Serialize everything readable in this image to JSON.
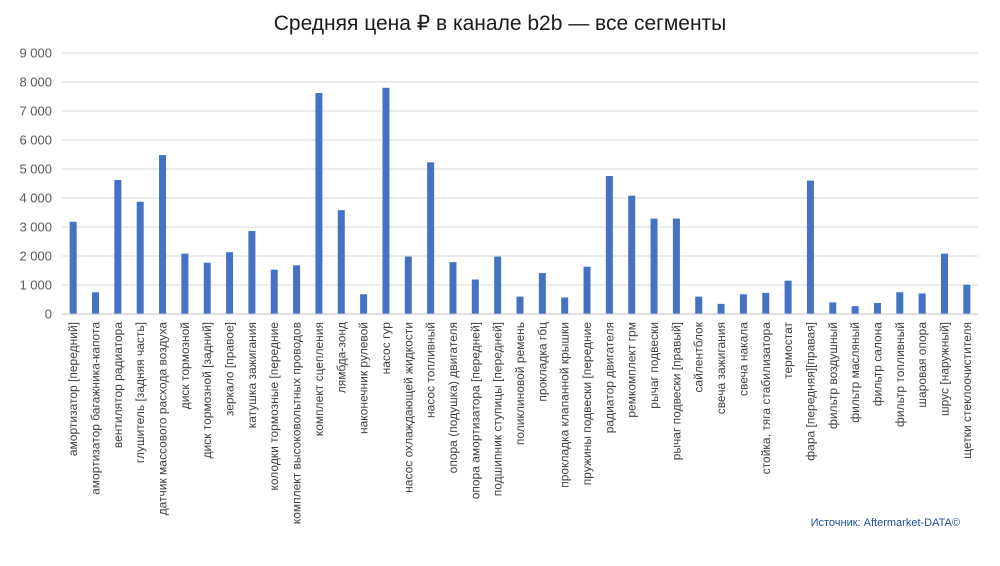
{
  "chart_data": {
    "type": "bar",
    "title": "Средняя цена ₽ в канале b2b — все сегменты",
    "xlabel": "",
    "ylabel": "",
    "ylim": [
      0,
      9000
    ],
    "yticks": [
      0,
      1000,
      2000,
      3000,
      4000,
      5000,
      6000,
      7000,
      8000,
      9000
    ],
    "ytick_labels": [
      "0",
      "1 000",
      "2 000",
      "3 000",
      "4 000",
      "5 000",
      "6 000",
      "7 000",
      "8 000",
      "9 000"
    ],
    "grid": true,
    "legend": "none",
    "bar_color": "#4472C4",
    "categories": [
      "амортизатор [передний]",
      "амортизатор багажника-капота",
      "вентилятор радиатора",
      "глушитель [задняя часть]",
      "датчик массового расхода воздуха",
      "диск тормозной",
      "диск тормозной [задний]",
      "зеркало [правое]",
      "катушка зажигания",
      "колодки тормозные [передние",
      "комплект высоковольтных проводов",
      "комплект сцепления",
      "лямбда-зонд",
      "наконечник рулевой",
      "насос гур",
      "насос охлаждающей жидкости",
      "насос топливный",
      "опора (подушка) двигателя",
      "опора амортизатора [передней]",
      "подшипник ступицы [передней]",
      "поликлиновой ремень",
      "прокладка гбц",
      "прокладка клапанной крышки",
      "пружины подвески [передние",
      "радиатор двигателя",
      "ремкомплект грм",
      "рычаг подвески",
      "рычаг подвески [правый]",
      "сайлентблок",
      "свеча зажигания",
      "свеча накала",
      "стойка, тяга стабилизатора",
      "термостат",
      "фара [передняя][правая]",
      "фильтр воздушный",
      "фильтр масляный",
      "фильтр салона",
      "фильтр топливный",
      "шаровая опора",
      "шрус [наружный]",
      "щетки стеклоочистителя"
    ],
    "values": [
      3180,
      750,
      4620,
      3870,
      5480,
      2080,
      1770,
      2130,
      2860,
      1530,
      1680,
      7620,
      3580,
      680,
      7800,
      1980,
      5230,
      1790,
      1190,
      1980,
      600,
      1410,
      570,
      1630,
      4760,
      4080,
      3290,
      3290,
      600,
      350,
      680,
      730,
      1150,
      4600,
      400,
      270,
      380,
      750,
      710,
      2080,
      1010
    ],
    "source": "Источник: Aftermarket-DATA©"
  }
}
